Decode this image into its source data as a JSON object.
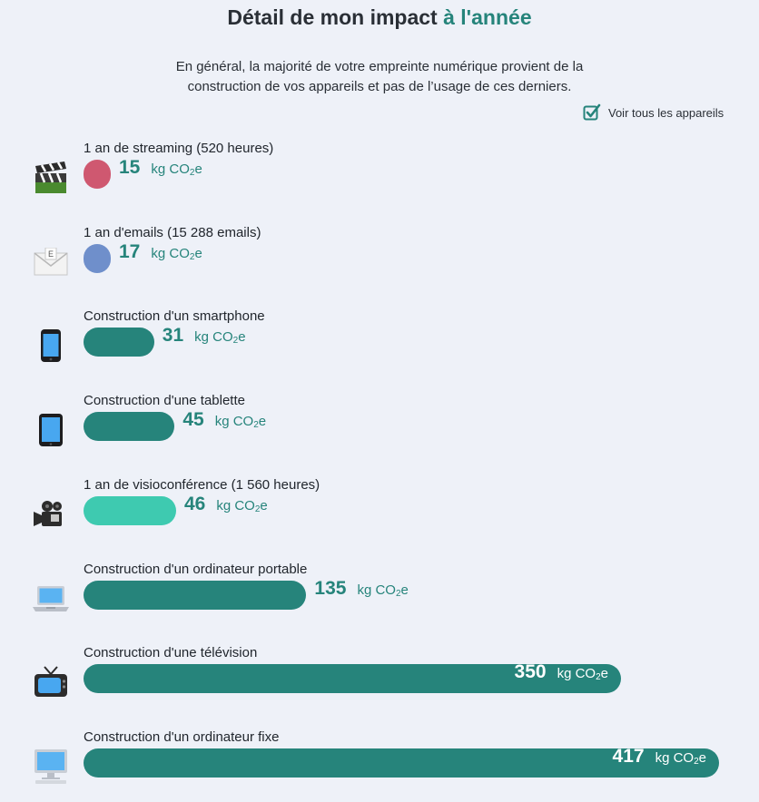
{
  "header": {
    "title_main": "Détail de mon impact",
    "title_accent": "à l'année",
    "intro_line1": "En général, la majorité de votre empreinte numérique provient de la",
    "intro_line2": "construction de vos appareils et pas de l’usage de ces derniers.",
    "toggle_label": "Voir tous les appareils"
  },
  "unit": {
    "prefix": "kg CO",
    "sub": "2",
    "suffix": "e"
  },
  "colors": {
    "teal": "#26847b",
    "streaming": "#cf5870",
    "email": "#6f8fcb",
    "visio": "#3ecab0",
    "background": "#eef1f8"
  },
  "chart_data": {
    "type": "bar",
    "orientation": "horizontal",
    "unit": "kg CO2e",
    "categories": [
      "1 an de streaming (520 heures)",
      "1 an d'emails (15 288 emails)",
      "Construction d'un smartphone",
      "Construction d'une tablette",
      "1 an de visioconférence (1 560 heures)",
      "Construction d'un ordinateur portable",
      "Construction d'une télévision",
      "Construction d'un ordinateur fixe"
    ],
    "values": [
      15,
      17,
      31,
      45,
      46,
      135,
      350,
      417
    ],
    "icons": [
      "clapperboard-icon",
      "envelope-icon",
      "smartphone-icon",
      "tablet-icon",
      "video-camera-icon",
      "laptop-icon",
      "television-icon",
      "desktop-computer-icon"
    ],
    "bar_colors": [
      "#cf5870",
      "#6f8fcb",
      "#26847b",
      "#26847b",
      "#3ecab0",
      "#26847b",
      "#26847b",
      "#26847b"
    ]
  }
}
